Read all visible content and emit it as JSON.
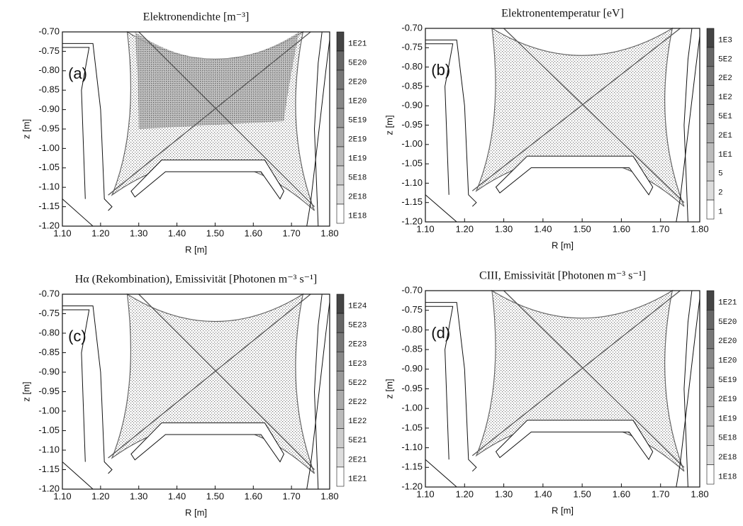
{
  "chart_data": [
    {
      "type": "map",
      "title": "Elektronendichte [m⁻³]",
      "panel_label": "(a)",
      "xlabel": "R [m]",
      "ylabel": "z [m]",
      "xlim": [
        1.1,
        1.8
      ],
      "ylim": [
        -1.2,
        -0.7
      ],
      "xticks": [
        {
          "value": 1.1,
          "label": "1.10"
        },
        {
          "value": 1.2,
          "label": "1.20"
        },
        {
          "value": 1.3,
          "label": "1.30"
        },
        {
          "value": 1.4,
          "label": "1.40"
        },
        {
          "value": 1.5,
          "label": "1.50"
        },
        {
          "value": 1.6,
          "label": "1.60"
        },
        {
          "value": 1.7,
          "label": "1.70"
        },
        {
          "value": 1.8,
          "label": "1.80"
        }
      ],
      "yticks": [
        {
          "value": -0.7,
          "label": "-0.70"
        },
        {
          "value": -0.75,
          "label": "-0.75"
        },
        {
          "value": -0.8,
          "label": "-0.80"
        },
        {
          "value": -0.85,
          "label": "-0.85"
        },
        {
          "value": -0.9,
          "label": "-0.90"
        },
        {
          "value": -0.95,
          "label": "-0.95"
        },
        {
          "value": -1.0,
          "label": "-1.00"
        },
        {
          "value": -1.05,
          "label": "-1.05"
        },
        {
          "value": -1.1,
          "label": "-1.10"
        },
        {
          "value": -1.15,
          "label": "-1.15"
        },
        {
          "value": -1.2,
          "label": "-1.20"
        }
      ],
      "colorbar_labels": [
        "1E21",
        "5E20",
        "2E20",
        "1E20",
        "5E19",
        "2E19",
        "1E19",
        "5E18",
        "2E18",
        "1E18"
      ]
    },
    {
      "type": "map",
      "title": "Elektronentemperatur [eV]",
      "panel_label": "(b)",
      "xlabel": "R [m]",
      "ylabel": "z [m]",
      "xlim": [
        1.1,
        1.8
      ],
      "ylim": [
        -1.2,
        -0.7
      ],
      "xticks": [
        {
          "value": 1.1,
          "label": "1.10"
        },
        {
          "value": 1.2,
          "label": "1.20"
        },
        {
          "value": 1.3,
          "label": "1.30"
        },
        {
          "value": 1.4,
          "label": "1.40"
        },
        {
          "value": 1.5,
          "label": "1.50"
        },
        {
          "value": 1.6,
          "label": "1.60"
        },
        {
          "value": 1.7,
          "label": "1.70"
        },
        {
          "value": 1.8,
          "label": "1.80"
        }
      ],
      "yticks": [
        {
          "value": -0.7,
          "label": "-0.70"
        },
        {
          "value": -0.75,
          "label": "-0.75"
        },
        {
          "value": -0.8,
          "label": "-0.80"
        },
        {
          "value": -0.85,
          "label": "-0.85"
        },
        {
          "value": -0.9,
          "label": "-0.90"
        },
        {
          "value": -0.95,
          "label": "-0.95"
        },
        {
          "value": -1.0,
          "label": "-1.00"
        },
        {
          "value": -1.05,
          "label": "-1.05"
        },
        {
          "value": -1.1,
          "label": "-1.10"
        },
        {
          "value": -1.15,
          "label": "-1.15"
        },
        {
          "value": -1.2,
          "label": "-1.20"
        }
      ],
      "colorbar_labels": [
        "1E3",
        "5E2",
        "2E2",
        "1E2",
        "5E1",
        "2E1",
        "1E1",
        "5",
        "2",
        "1"
      ]
    },
    {
      "type": "map",
      "title": "Hα (Rekombination), Emissivität [Photonen m⁻³ s⁻¹]",
      "panel_label": "(c)",
      "xlabel": "R [m]",
      "ylabel": "z [m]",
      "xlim": [
        1.1,
        1.8
      ],
      "ylim": [
        -1.2,
        -0.7
      ],
      "xticks": [
        {
          "value": 1.1,
          "label": "1.10"
        },
        {
          "value": 1.2,
          "label": "1.20"
        },
        {
          "value": 1.3,
          "label": "1.30"
        },
        {
          "value": 1.4,
          "label": "1.40"
        },
        {
          "value": 1.5,
          "label": "1.50"
        },
        {
          "value": 1.6,
          "label": "1.60"
        },
        {
          "value": 1.7,
          "label": "1.70"
        },
        {
          "value": 1.8,
          "label": "1.80"
        }
      ],
      "yticks": [
        {
          "value": -0.7,
          "label": "-0.70"
        },
        {
          "value": -0.75,
          "label": "-0.75"
        },
        {
          "value": -0.8,
          "label": "-0.80"
        },
        {
          "value": -0.85,
          "label": "-0.85"
        },
        {
          "value": -0.9,
          "label": "-0.90"
        },
        {
          "value": -0.95,
          "label": "-0.95"
        },
        {
          "value": -1.0,
          "label": "-1.00"
        },
        {
          "value": -1.05,
          "label": "-1.05"
        },
        {
          "value": -1.1,
          "label": "-1.10"
        },
        {
          "value": -1.15,
          "label": "-1.15"
        },
        {
          "value": -1.2,
          "label": "-1.20"
        }
      ],
      "colorbar_labels": [
        "1E24",
        "5E23",
        "2E23",
        "1E23",
        "5E22",
        "2E22",
        "1E22",
        "5E21",
        "2E21",
        "1E21"
      ]
    },
    {
      "type": "map",
      "title": "CIII, Emissivität [Photonen m⁻³ s⁻¹]",
      "panel_label": "(d)",
      "xlabel": "R [m]",
      "ylabel": "z [m]",
      "xlim": [
        1.1,
        1.8
      ],
      "ylim": [
        -1.2,
        -0.7
      ],
      "xticks": [
        {
          "value": 1.1,
          "label": "1.10"
        },
        {
          "value": 1.2,
          "label": "1.20"
        },
        {
          "value": 1.3,
          "label": "1.30"
        },
        {
          "value": 1.4,
          "label": "1.40"
        },
        {
          "value": 1.5,
          "label": "1.50"
        },
        {
          "value": 1.6,
          "label": "1.60"
        },
        {
          "value": 1.7,
          "label": "1.70"
        },
        {
          "value": 1.8,
          "label": "1.80"
        }
      ],
      "yticks": [
        {
          "value": -0.7,
          "label": "-0.70"
        },
        {
          "value": -0.75,
          "label": "-0.75"
        },
        {
          "value": -0.8,
          "label": "-0.80"
        },
        {
          "value": -0.85,
          "label": "-0.85"
        },
        {
          "value": -0.9,
          "label": "-0.90"
        },
        {
          "value": -0.95,
          "label": "-0.95"
        },
        {
          "value": -1.0,
          "label": "-1.00"
        },
        {
          "value": -1.05,
          "label": "-1.05"
        },
        {
          "value": -1.1,
          "label": "-1.10"
        },
        {
          "value": -1.15,
          "label": "-1.15"
        },
        {
          "value": -1.2,
          "label": "-1.20"
        }
      ],
      "colorbar_labels": [
        "1E21",
        "5E20",
        "2E20",
        "1E20",
        "5E19",
        "2E19",
        "1E19",
        "5E18",
        "2E18",
        "1E18"
      ]
    }
  ]
}
